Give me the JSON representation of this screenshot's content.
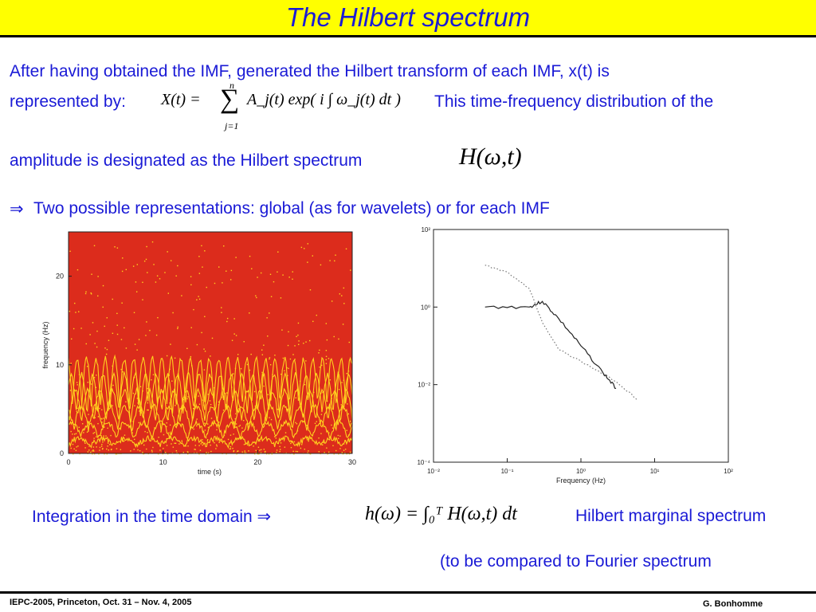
{
  "slide": {
    "title": "The Hilbert spectrum",
    "para1_line1": "After having obtained the IMF, generated the Hilbert transform of each IMF, x(t) is",
    "para1_line2a": "represented by:",
    "para1_line2b": "This time-frequency distribution of the",
    "para1_line3": "amplitude is designated as the Hilbert spectrum",
    "bullet_arrow": "⇒",
    "bullet": "Two possible representations:  global (as for wavelets) or for each IMF",
    "integration_text": "Integration in the time domain  ⇒",
    "marginal_label": "Hilbert marginal spectrum",
    "compare_note": "(to be compared to Fourier spectrum",
    "footer_left": "IEPC-2005, Princeton, Oct. 31 – Nov. 4, 2005",
    "footer_right": "G. Bonhomme"
  },
  "formulas": {
    "xt_lhs": "X(t) =",
    "sum_top": "n",
    "sum_bottom": "j=1",
    "xt_rhs": "A_j(t) exp( i ∫ ω_j(t) dt )",
    "hilbert_spectrum": "H(ω,t)",
    "marginal": "h(ω) = ∫₀ᵀ H(ω,t) dt"
  },
  "colors": {
    "title_bg": "#ffff00",
    "text_blue": "#1a1ad6",
    "spectrogram_bg": "#dc2c1c",
    "spectrogram_lines": "#ffd21e"
  },
  "chart_data": [
    {
      "type": "heatmap",
      "title": "",
      "xlabel": "time (s)",
      "ylabel": "frequency (Hz)",
      "xlim": [
        0,
        30
      ],
      "ylim": [
        0,
        25
      ],
      "x_ticks": [
        "0",
        "10",
        "20",
        "30"
      ],
      "y_ticks": [
        "0",
        "10",
        "20"
      ]
    },
    {
      "type": "line",
      "title": "",
      "xlabel": "Frequency (Hz)",
      "ylabel": "",
      "x_scale": "log",
      "y_scale": "log",
      "xlim": [
        0.01,
        100
      ],
      "ylim": [
        0.0001,
        100
      ],
      "x_ticks": [
        "10⁻²",
        "10⁻¹",
        "10⁰",
        "10¹",
        "10²"
      ],
      "y_ticks": [
        "10⁻⁴",
        "10⁻²",
        "10⁰",
        "10²"
      ],
      "series": [
        {
          "style": "solid",
          "x": [
            0.05,
            0.2,
            0.3,
            0.5,
            1,
            2,
            3
          ],
          "y": [
            1.0,
            1.0,
            1.4,
            0.5,
            0.1,
            0.02,
            0.008
          ]
        },
        {
          "style": "dotted",
          "x": [
            0.05,
            0.1,
            0.2,
            0.3,
            0.5,
            1,
            3,
            6
          ],
          "y": [
            12,
            8,
            3,
            0.4,
            0.08,
            0.04,
            0.012,
            0.004
          ]
        }
      ]
    }
  ]
}
